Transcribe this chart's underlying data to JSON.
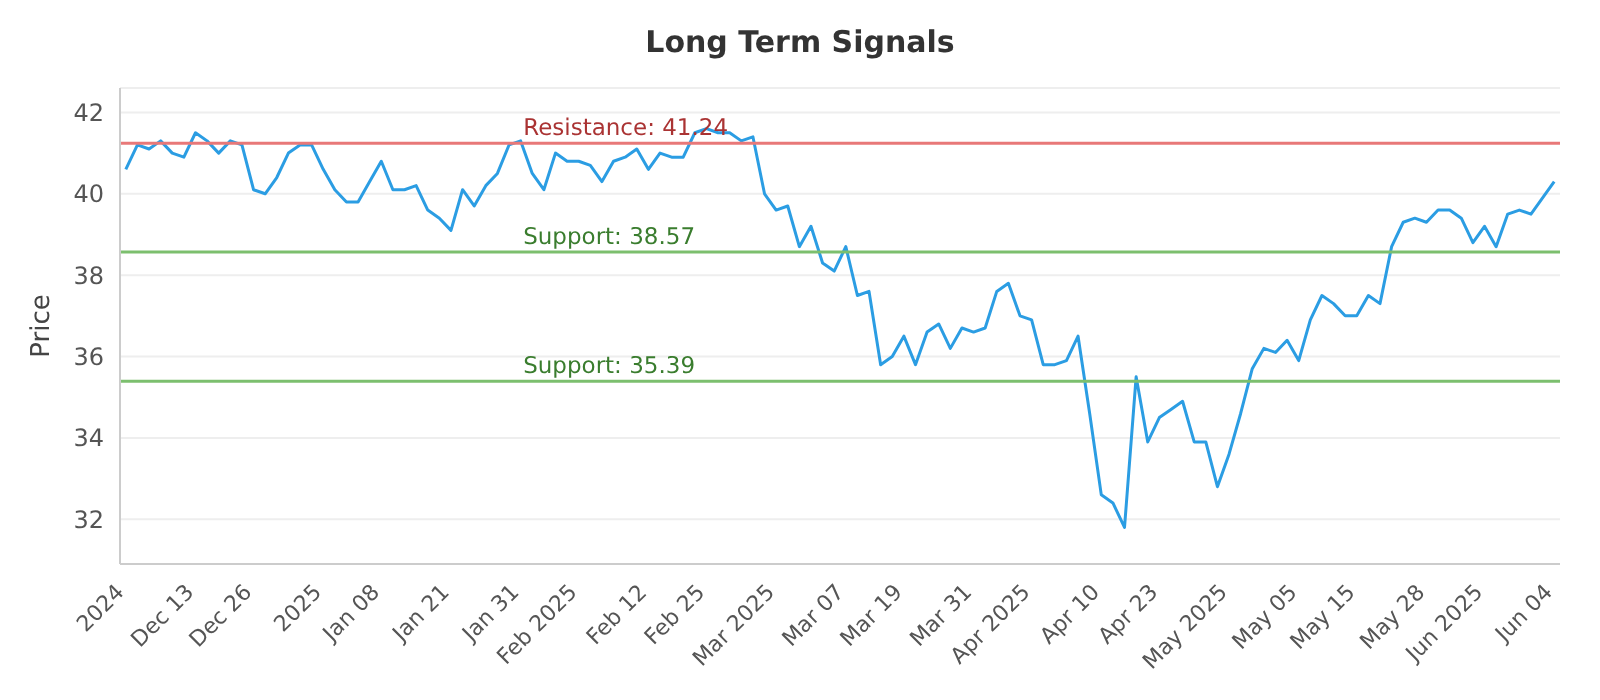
{
  "chart_data": {
    "type": "line",
    "title": "Long Term Signals",
    "ylabel": "Price",
    "categories": [
      "2024",
      null,
      null,
      null,
      null,
      null,
      "Dec 13",
      null,
      null,
      null,
      null,
      "Dec 26",
      null,
      null,
      null,
      null,
      null,
      "2025",
      null,
      null,
      null,
      null,
      "Jan 08",
      null,
      null,
      null,
      null,
      null,
      "Jan 21",
      null,
      null,
      null,
      null,
      null,
      "Jan 31",
      null,
      null,
      null,
      null,
      "Feb 2025",
      null,
      null,
      null,
      null,
      null,
      "Feb 12",
      null,
      null,
      null,
      null,
      "Feb 25",
      null,
      null,
      null,
      null,
      null,
      "Mar 2025",
      null,
      null,
      null,
      null,
      null,
      "Mar 07",
      null,
      null,
      null,
      null,
      "Mar 19",
      null,
      null,
      null,
      null,
      null,
      "Mar 31",
      null,
      null,
      null,
      null,
      "Apr 2025",
      null,
      null,
      null,
      null,
      null,
      "Apr 10",
      null,
      null,
      null,
      null,
      "Apr 23",
      null,
      null,
      null,
      null,
      null,
      "May 2025",
      null,
      null,
      null,
      null,
      null,
      "May 05",
      null,
      null,
      null,
      null,
      "May 15",
      null,
      null,
      null,
      null,
      null,
      "May 28",
      null,
      null,
      null,
      null,
      "Jun 2025",
      null,
      null,
      null,
      null,
      null,
      "Jun 04"
    ],
    "series": [
      {
        "color": "#2b9de3",
        "values": [
          40.6,
          41.2,
          41.1,
          41.3,
          41.0,
          40.9,
          41.5,
          41.3,
          41.0,
          41.3,
          41.2,
          40.1,
          40.0,
          40.4,
          41.0,
          41.2,
          41.2,
          40.6,
          40.1,
          39.8,
          39.8,
          40.3,
          40.8,
          40.1,
          40.1,
          40.2,
          39.6,
          39.4,
          39.1,
          40.1,
          39.7,
          40.2,
          40.5,
          41.2,
          41.3,
          40.5,
          40.1,
          41.0,
          40.8,
          40.8,
          40.7,
          40.3,
          40.8,
          40.9,
          41.1,
          40.6,
          41.0,
          40.9,
          40.9,
          41.5,
          41.6,
          41.5,
          41.5,
          41.3,
          41.4,
          40.0,
          39.6,
          39.7,
          38.7,
          39.2,
          38.3,
          38.1,
          38.7,
          37.5,
          37.6,
          35.8,
          36.0,
          36.5,
          35.8,
          36.6,
          36.8,
          36.2,
          36.7,
          36.6,
          36.7,
          37.6,
          37.8,
          37.0,
          36.9,
          35.8,
          35.8,
          35.9,
          36.5,
          34.6,
          32.6,
          32.4,
          31.8,
          35.5,
          33.9,
          34.5,
          34.7,
          34.9,
          33.9,
          33.9,
          32.8,
          33.6,
          34.6,
          35.7,
          36.2,
          36.1,
          36.4,
          35.9,
          36.9,
          37.5,
          37.3,
          37.0,
          37.0,
          37.5,
          37.3,
          38.7,
          39.3,
          39.4,
          39.3,
          39.6,
          39.6,
          39.4,
          38.8,
          39.2,
          38.7,
          39.5,
          39.6,
          39.5,
          39.9,
          40.3
        ]
      }
    ],
    "ylim": [
      30.9,
      42.6
    ],
    "yticks": [
      32,
      34,
      36,
      38,
      40,
      42
    ],
    "grid": "y",
    "marker": "none",
    "line_style": "solid",
    "ref_lines": [
      {
        "axis": "y",
        "value": 41.24,
        "label": "Resistance: 41.24",
        "color": "#e87878"
      },
      {
        "axis": "y",
        "value": 38.57,
        "label": "Support: 38.57",
        "color": "#7cbf6e"
      },
      {
        "axis": "y",
        "value": 35.39,
        "label": "Support: 35.39",
        "color": "#7cbf6e"
      }
    ]
  }
}
